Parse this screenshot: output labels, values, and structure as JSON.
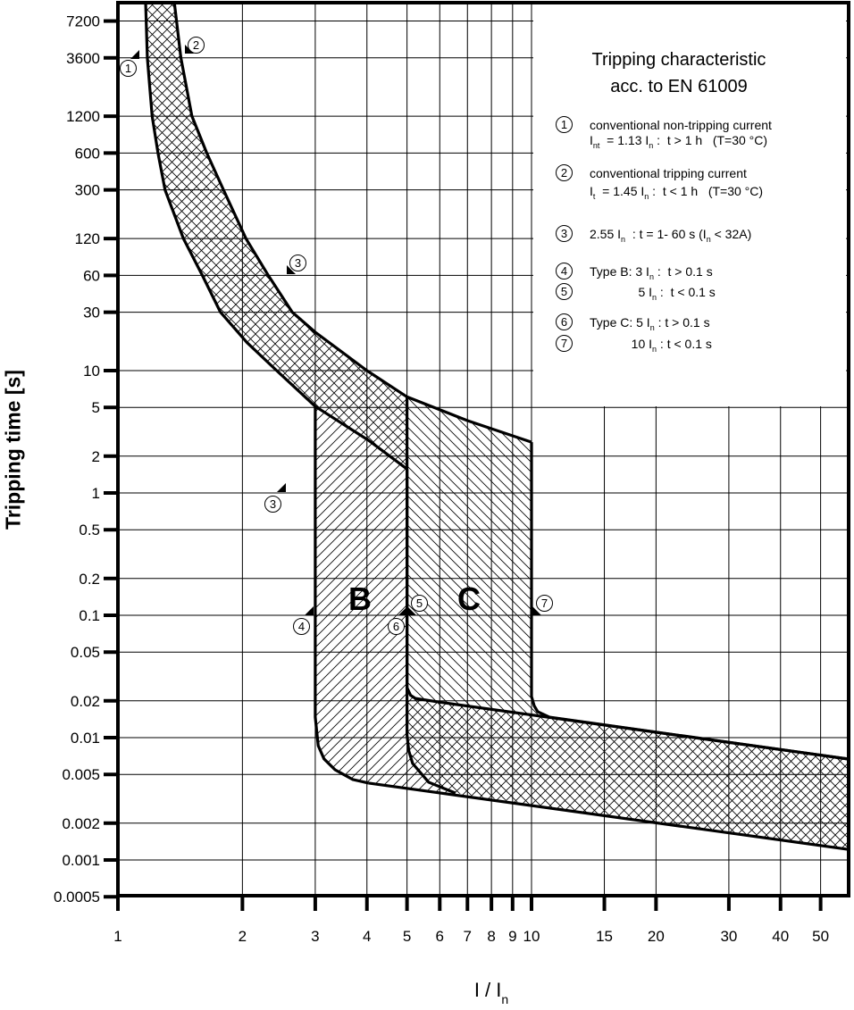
{
  "chart_data": {
    "type": "line",
    "title": [
      "Tripping characteristic",
      "acc. to EN 61009"
    ],
    "xlabel": {
      "main": "I / I",
      "sub": "n"
    },
    "ylabel": "Tripping time [s]",
    "x_scale": "log",
    "y_scale": "log",
    "xlim": [
      1,
      58.4
    ],
    "ylim": [
      0.0005,
      10000
    ],
    "grid": true,
    "x_ticks": [
      "1",
      "2",
      "3",
      "4",
      "5",
      "6",
      "7",
      "8",
      "9",
      "10",
      "15",
      "20",
      "30",
      "40",
      "50"
    ],
    "y_ticks": [
      "7200",
      "3600",
      "1200",
      "600",
      "300",
      "120",
      "60",
      "30",
      "10",
      "5",
      "2",
      "1",
      "0.5",
      "0.2",
      "0.1",
      "0.05",
      "0.02",
      "0.01",
      "0.005",
      "0.002",
      "0.001",
      "0.0005"
    ],
    "series": {
      "thermal_lower": [
        [
          1.167,
          10000
        ],
        [
          1.178,
          3600
        ],
        [
          1.21,
          1200
        ],
        [
          1.25,
          600
        ],
        [
          1.3,
          300
        ],
        [
          1.44,
          120
        ],
        [
          1.6,
          60
        ],
        [
          1.77,
          30
        ],
        [
          2.05,
          17
        ],
        [
          2.42,
          10
        ],
        [
          3.0,
          5.1
        ],
        [
          4.03,
          2.7
        ],
        [
          5.0,
          1.57
        ]
      ],
      "thermal_upper": [
        [
          1.37,
          10000
        ],
        [
          1.42,
          3600
        ],
        [
          1.51,
          1200
        ],
        [
          1.64,
          600
        ],
        [
          1.8,
          300
        ],
        [
          2.04,
          120
        ],
        [
          2.31,
          60
        ],
        [
          2.64,
          30
        ],
        [
          3.0,
          20.6
        ],
        [
          4.0,
          10
        ],
        [
          5.0,
          6.1
        ],
        [
          7.0,
          3.9
        ],
        [
          10,
          2.6
        ]
      ],
      "type_b_lower": [
        [
          3,
          5.1
        ],
        [
          3,
          0.0147
        ],
        [
          3.05,
          0.0086
        ],
        [
          3.15,
          0.0067
        ],
        [
          3.35,
          0.00546
        ],
        [
          3.7,
          0.00454
        ],
        [
          4.04,
          0.00425
        ]
      ],
      "type_b_upper": [
        [
          5,
          1.57
        ],
        [
          5,
          0.0256
        ],
        [
          5.1,
          0.0222
        ],
        [
          5.24,
          0.0209
        ],
        [
          5.93,
          0.0196
        ]
      ],
      "type_c_lower": [
        [
          5,
          6.1
        ],
        [
          5,
          0.0105
        ],
        [
          5.05,
          0.0078
        ],
        [
          5.16,
          0.00614
        ],
        [
          5.64,
          0.00432
        ],
        [
          6.55,
          0.00352
        ]
      ],
      "type_c_upper": [
        [
          10,
          2.6
        ],
        [
          10,
          0.0217
        ],
        [
          10.15,
          0.0182
        ],
        [
          10.35,
          0.0163
        ],
        [
          11.05,
          0.0147
        ]
      ],
      "instant_upper": [
        [
          5.93,
          0.0196
        ],
        [
          58.4,
          0.00668
        ]
      ],
      "instant_lower": [
        [
          4.04,
          0.00425
        ],
        [
          58.4,
          0.00122
        ]
      ]
    },
    "region_labels": [
      "B",
      "C"
    ],
    "markers": [
      {
        "label": "1",
        "x": 1.13,
        "y": 3600
      },
      {
        "label": "2",
        "x": 1.45,
        "y": 3600
      },
      {
        "label": "3",
        "x": 2.55,
        "y": 60
      },
      {
        "label": "3",
        "x": 2.55,
        "y": 1
      },
      {
        "label": "4",
        "x": 3,
        "y": 0.1
      },
      {
        "label": "5",
        "x": 5,
        "y": 0.1
      },
      {
        "label": "6",
        "x": 5,
        "y": 0.1
      },
      {
        "label": "7",
        "x": 10,
        "y": 0.1
      }
    ]
  },
  "legend": {
    "items": [
      {
        "num": "1",
        "lines": [
          [
            {
              "t": "conventional non-tripping current"
            }
          ],
          [
            {
              "t": "I"
            },
            {
              "s": "nt"
            },
            {
              "t": "  = 1.13 I"
            },
            {
              "s": "n"
            },
            {
              "t": " :  t > 1 h   (T=30 °C)"
            }
          ]
        ]
      },
      {
        "num": "2",
        "lines": [
          [
            {
              "t": "conventional tripping current"
            }
          ],
          [
            {
              "t": "I"
            },
            {
              "s": "t"
            },
            {
              "t": "  = 1.45 I"
            },
            {
              "s": "n"
            },
            {
              "t": " :  t < 1 h   (T=30 °C)"
            }
          ]
        ]
      },
      {
        "num": "3",
        "lines": [
          [
            {
              "t": "2.55 I"
            },
            {
              "s": "n"
            },
            {
              "t": "  : t = 1- 60 s (I"
            },
            {
              "s": "n"
            },
            {
              "t": " < 32A)"
            }
          ]
        ]
      },
      {
        "num": "4",
        "lines": [
          [
            {
              "t": "Type B: 3 I"
            },
            {
              "s": "n"
            },
            {
              "t": " :  t > 0.1 s"
            }
          ]
        ]
      },
      {
        "num": "5",
        "lines": [
          [
            {
              "t": "              5 I"
            },
            {
              "s": "n"
            },
            {
              "t": " :  t < 0.1 s"
            }
          ]
        ]
      },
      {
        "num": "6",
        "lines": [
          [
            {
              "t": "Type C: 5 I"
            },
            {
              "s": "n"
            },
            {
              "t": " : t > 0.1 s"
            }
          ]
        ]
      },
      {
        "num": "7",
        "lines": [
          [
            {
              "t": "            10 I"
            },
            {
              "s": "n"
            },
            {
              "t": " : t < 0.1 s"
            }
          ]
        ]
      }
    ]
  }
}
